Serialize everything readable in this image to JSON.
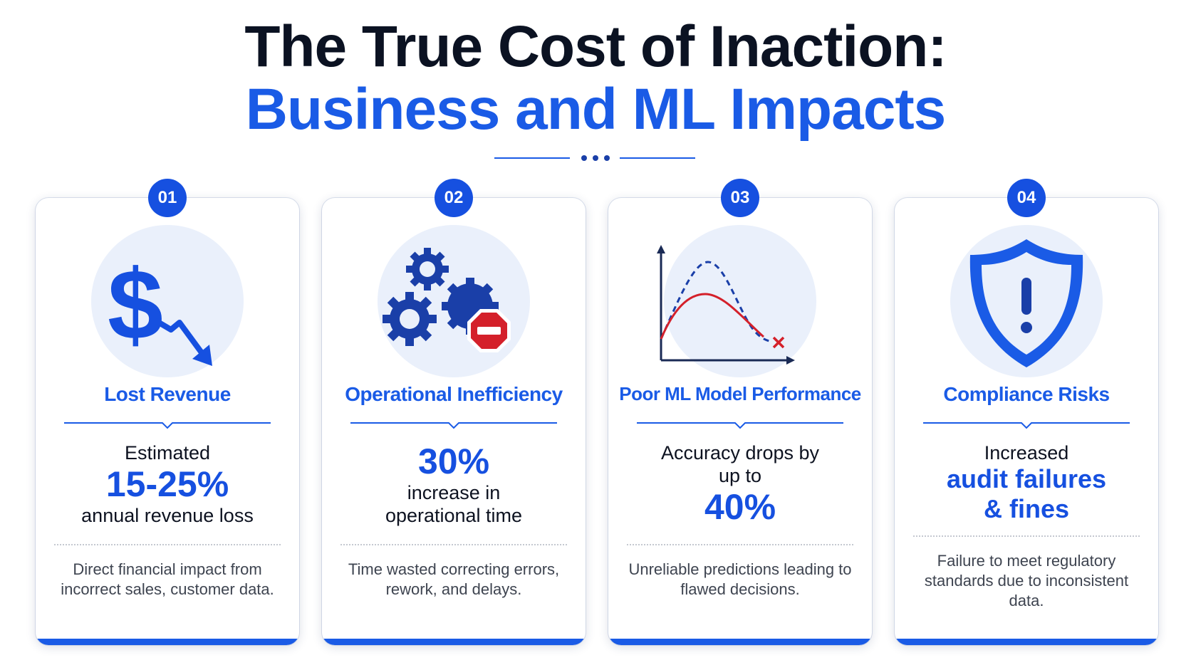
{
  "title": {
    "line1": "The True Cost of Inaction:",
    "line2": "Business and ML Impacts"
  },
  "colors": {
    "accent": "#1a5be6",
    "badge": "#1650e0",
    "dark": "#0b1222",
    "icon_bg": "#eaf0fb",
    "error_red": "#d4202a"
  },
  "cards": [
    {
      "number": "01",
      "icon": "dollar-down-icon",
      "title": "Lost Revenue",
      "metric_pre": "Estimated",
      "metric_value": "15-25%",
      "metric_post": "annual revenue loss",
      "description": "Direct financial impact from incorrect sales, customer data."
    },
    {
      "number": "02",
      "icon": "gears-stop-icon",
      "title": "Operational Inefficiency",
      "metric_value": "30%",
      "metric_post_1": "increase in",
      "metric_post_2": "operational time",
      "description": "Time wasted correcting errors, rework, and delays."
    },
    {
      "number": "03",
      "icon": "performance-curve-icon",
      "title": "Poor ML Model Performance",
      "metric_pre_1": "Accuracy drops by",
      "metric_pre_2": "up to",
      "metric_value": "40%",
      "description": "Unreliable predictions leading to flawed decisions."
    },
    {
      "number": "04",
      "icon": "shield-warning-icon",
      "title": "Compliance Risks",
      "metric_pre": "Increased",
      "metric_value_1": "audit failures",
      "metric_value_2": "& fines",
      "description": "Failure to meet regulatory standards due to inconsistent data."
    }
  ]
}
